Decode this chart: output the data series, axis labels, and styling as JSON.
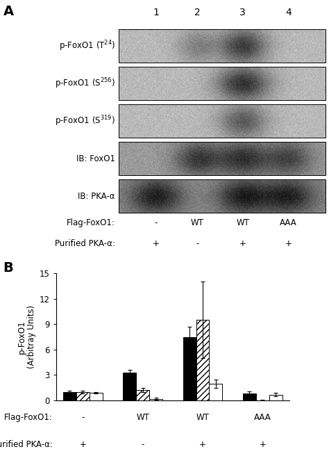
{
  "panel_A_label": "A",
  "panel_B_label": "B",
  "lane_numbers": [
    "1",
    "2",
    "3",
    "4"
  ],
  "blot_label_texts": [
    "p-FoxO1 (T$^{24}$)",
    "p-FoxO1 (S$^{256}$)",
    "p-FoxO1 (S$^{319}$)",
    "IB: FoxO1",
    "IB: PKA-α"
  ],
  "flag_foxo1_row": [
    "Flag-FoxO1:",
    "-",
    "WT",
    "WT",
    "AAA"
  ],
  "purified_pka_row": [
    "Purified PKA-α:",
    "+",
    "-",
    "+",
    "+"
  ],
  "T24_values": [
    1.0,
    3.3,
    7.5,
    0.8
  ],
  "T24_errors": [
    0.15,
    0.3,
    1.2,
    0.25
  ],
  "S256_values": [
    1.0,
    1.2,
    9.5,
    0.0
  ],
  "S256_errors": [
    0.15,
    0.25,
    4.5,
    0.05
  ],
  "S319_values": [
    0.9,
    0.2,
    2.0,
    0.7
  ],
  "S319_errors": [
    0.1,
    0.15,
    0.5,
    0.2
  ],
  "ylim": [
    0,
    15
  ],
  "yticks": [
    0,
    3,
    6,
    9,
    12,
    15
  ],
  "bar_width": 0.22,
  "bg_color": "#ffffff"
}
